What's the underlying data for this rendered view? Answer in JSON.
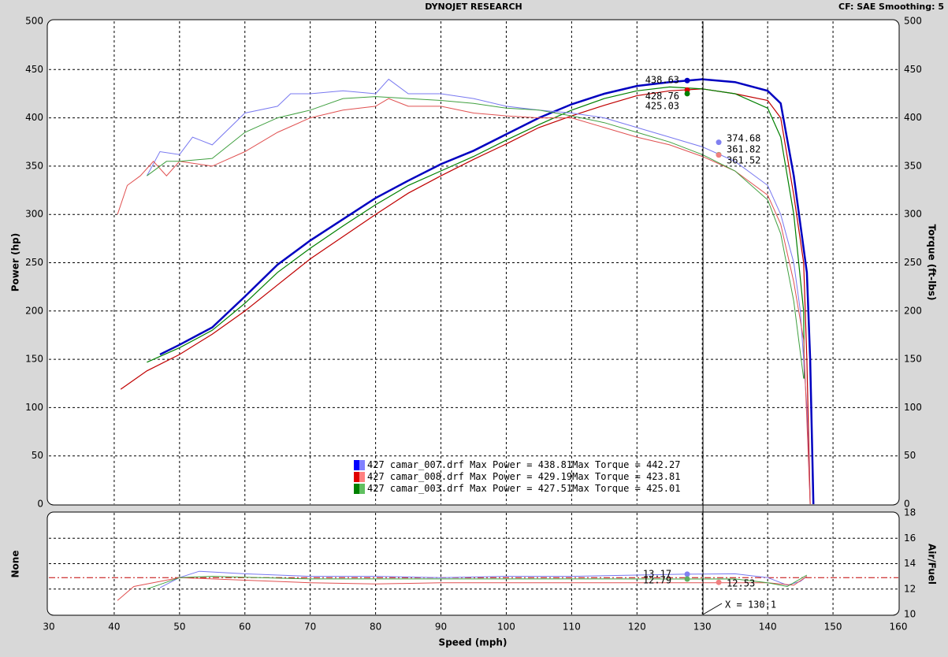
{
  "header": {
    "title": "DYNOJET RESEARCH",
    "settings": "CF: SAE  Smoothing: 5"
  },
  "chart_data": [
    {
      "type": "line",
      "y_label": "Power (hp)",
      "y2_label": "Torque (ft-lbs)",
      "xlim": [
        30,
        160
      ],
      "xticks": [
        30,
        40,
        50,
        60,
        70,
        80,
        90,
        100,
        110,
        120,
        130,
        140,
        150,
        160
      ],
      "ylim": [
        0,
        500
      ],
      "yticks": [
        0,
        50,
        100,
        150,
        200,
        250,
        300,
        350,
        400,
        450,
        500
      ],
      "y2lim": [
        0,
        500
      ],
      "y2ticks": [
        0,
        50,
        100,
        150,
        200,
        250,
        300,
        350,
        400,
        450,
        500
      ],
      "grid": true,
      "series": [
        {
          "color": "#0000c0",
          "width": 2.5,
          "x": [
            47,
            50,
            55,
            60,
            65,
            70,
            75,
            80,
            85,
            90,
            95,
            100,
            105,
            110,
            115,
            120,
            125,
            130,
            135,
            140,
            142,
            144,
            146,
            146.5,
            147
          ],
          "values": [
            155,
            165,
            183,
            215,
            248,
            273,
            295,
            317,
            335,
            352,
            366,
            383,
            400,
            414,
            425,
            433,
            437,
            440,
            437,
            428,
            415,
            340,
            240,
            150,
            0
          ]
        },
        {
          "color": "#c00000",
          "width": 1.2,
          "x": [
            41,
            45,
            50,
            55,
            60,
            65,
            70,
            75,
            80,
            85,
            90,
            95,
            100,
            105,
            110,
            115,
            120,
            125,
            130,
            135,
            140,
            142,
            144,
            145.5,
            146,
            146.5
          ],
          "values": [
            119,
            138,
            155,
            176,
            200,
            227,
            254,
            277,
            300,
            322,
            340,
            357,
            373,
            390,
            402,
            413,
            423,
            428,
            430,
            425,
            418,
            400,
            320,
            250,
            150,
            0
          ]
        },
        {
          "color": "#008000",
          "width": 1.2,
          "x": [
            45,
            50,
            55,
            60,
            65,
            70,
            75,
            80,
            85,
            90,
            95,
            100,
            105,
            110,
            115,
            120,
            125,
            130,
            135,
            140,
            142,
            144,
            145.5,
            145.6
          ],
          "values": [
            147,
            162,
            180,
            208,
            240,
            265,
            288,
            310,
            330,
            345,
            360,
            377,
            393,
            408,
            420,
            428,
            432,
            430,
            425,
            410,
            380,
            300,
            200,
            130
          ]
        },
        {
          "color": "#7878f0",
          "width": 1,
          "axis": "y2",
          "x": [
            45,
            47,
            50,
            52,
            55,
            60,
            65,
            67,
            70,
            75,
            80,
            82,
            85,
            90,
            95,
            100,
            105,
            110,
            115,
            120,
            125,
            130,
            135,
            140,
            142,
            144,
            145,
            146,
            146.5
          ],
          "values": [
            340,
            365,
            362,
            380,
            372,
            405,
            412,
            425,
            425,
            428,
            425,
            440,
            425,
            425,
            420,
            412,
            408,
            405,
            400,
            390,
            380,
            370,
            355,
            330,
            300,
            250,
            200,
            100,
            0
          ]
        },
        {
          "color": "#e05050",
          "width": 1,
          "axis": "y2",
          "x": [
            40.5,
            42,
            44,
            46,
            48,
            50,
            55,
            60,
            65,
            70,
            75,
            80,
            82,
            85,
            90,
            95,
            100,
            105,
            110,
            115,
            120,
            125,
            130,
            135,
            140,
            142,
            144,
            145.5,
            146.5
          ],
          "values": [
            300,
            330,
            340,
            355,
            340,
            355,
            350,
            365,
            385,
            400,
            408,
            412,
            420,
            412,
            412,
            405,
            402,
            400,
            400,
            390,
            380,
            372,
            360,
            345,
            320,
            290,
            230,
            170,
            0
          ]
        },
        {
          "color": "#40a040",
          "width": 1,
          "axis": "y2",
          "x": [
            45,
            48,
            50,
            55,
            60,
            65,
            70,
            75,
            80,
            85,
            90,
            95,
            100,
            105,
            110,
            115,
            120,
            125,
            130,
            135,
            140,
            142,
            144,
            145.5
          ],
          "values": [
            340,
            355,
            355,
            358,
            385,
            400,
            408,
            420,
            422,
            420,
            418,
            415,
            410,
            408,
            402,
            395,
            385,
            375,
            362,
            345,
            315,
            280,
            210,
            130
          ]
        }
      ],
      "cursor_readouts": {
        "power": [
          438.63,
          428.76,
          425.03
        ],
        "power_colors": [
          "#0000c0",
          "#e00000",
          "#008000"
        ],
        "torque": [
          374.68,
          361.82,
          361.52
        ],
        "torque_colors": [
          "#8080f0",
          "#60b060",
          "#f08080"
        ]
      },
      "legend": [
        {
          "file": "427 camar_007.drf",
          "power_label": "Max Power =",
          "max_power": 438.81,
          "torque_label": "Max Torque =",
          "max_torque": 442.27,
          "colors": [
            "#0000ff",
            "#8080ff"
          ]
        },
        {
          "file": "427 camar_008.drf",
          "power_label": "Max Power =",
          "max_power": 429.19,
          "torque_label": "Max Torque =",
          "max_torque": 423.81,
          "colors": [
            "#e00000",
            "#ff8080"
          ]
        },
        {
          "file": "427 camar_003.drf",
          "power_label": "Max Power =",
          "max_power": 427.51,
          "torque_label": "Max Torque =",
          "max_torque": 425.01,
          "colors": [
            "#008000",
            "#60c060"
          ]
        }
      ]
    },
    {
      "type": "line",
      "y_label": "None",
      "y2_label": "Air/Fuel",
      "x_label": "Speed (mph)",
      "xlim": [
        30,
        160
      ],
      "xticks": [
        30,
        40,
        50,
        60,
        70,
        80,
        90,
        100,
        110,
        120,
        130,
        140,
        150,
        160
      ],
      "y2lim": [
        10,
        18
      ],
      "y2ticks": [
        10,
        12,
        14,
        16,
        18
      ],
      "grid": true,
      "reference_line": 12.9,
      "series": [
        {
          "color": "#7878f0",
          "axis": "y2",
          "x": [
            47,
            50,
            53,
            60,
            70,
            80,
            90,
            100,
            110,
            120,
            127,
            135,
            140,
            143,
            145,
            146
          ],
          "values": [
            12.1,
            12.9,
            13.4,
            13.2,
            13.0,
            13.0,
            12.9,
            13.0,
            13.0,
            13.1,
            13.17,
            13.2,
            12.9,
            12.3,
            12.6,
            13.0
          ]
        },
        {
          "color": "#e05050",
          "axis": "y2",
          "x": [
            40.5,
            43,
            50,
            55,
            70,
            80,
            90,
            100,
            110,
            120,
            130,
            140,
            144,
            146
          ],
          "values": [
            11.1,
            12.2,
            12.9,
            12.8,
            12.5,
            12.4,
            12.5,
            12.5,
            12.5,
            12.5,
            12.5,
            12.5,
            12.3,
            13.0
          ]
        },
        {
          "color": "#40a040",
          "axis": "y2",
          "x": [
            45,
            50,
            55,
            70,
            90,
            110,
            127,
            135,
            140,
            143,
            146
          ],
          "values": [
            12.0,
            12.9,
            13.0,
            12.8,
            12.8,
            12.8,
            12.79,
            12.8,
            12.5,
            12.2,
            13.1
          ]
        }
      ],
      "cursor": {
        "value": 130.1,
        "label": "X = 130.1"
      },
      "cursor_readouts": {
        "afr": [
          13.17,
          12.79,
          12.53
        ],
        "afr_colors": [
          "#8080f0",
          "#60b060",
          "#f08080"
        ]
      }
    }
  ]
}
